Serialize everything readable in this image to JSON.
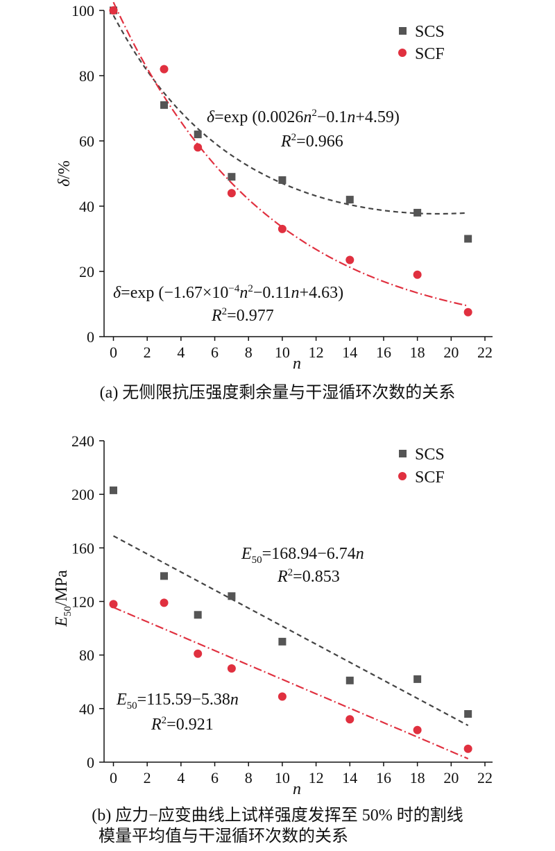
{
  "chart_data": [
    {
      "type": "scatter",
      "xlabel": "n",
      "ylabel": "δ/%",
      "xlim": [
        -1,
        22
      ],
      "ylim": [
        0,
        100
      ],
      "xticks": [
        "0",
        "2",
        "4",
        "6",
        "8",
        "10",
        "12",
        "14",
        "16",
        "18",
        "20",
        "22"
      ],
      "yticks": [
        "0",
        "20",
        "40",
        "60",
        "80",
        "100"
      ],
      "legend_position": "top-right",
      "legend": [
        "SCS",
        "SCF"
      ],
      "caption": "(a) 无侧限抗压强度剩余量与干湿循环次数的关系",
      "series": [
        {
          "name": "SCS",
          "marker": "square",
          "color": "#555555",
          "x": [
            0,
            3,
            5,
            7,
            10,
            14,
            18,
            21
          ],
          "y": [
            100,
            71,
            62,
            49,
            48,
            42,
            38,
            30
          ]
        },
        {
          "name": "SCF",
          "marker": "circle",
          "color": "#e0303f",
          "x": [
            0,
            3,
            5,
            7,
            10,
            14,
            18,
            21
          ],
          "y": [
            100,
            82,
            58,
            44,
            33,
            23.5,
            19,
            7.5
          ]
        }
      ],
      "fits": [
        {
          "series": "SCS",
          "line": "dashed",
          "color": "#444444",
          "model": "exp",
          "coef": [
            0.0026,
            -0.1,
            4.59
          ],
          "x_range": [
            0,
            21
          ],
          "eq_prefix": "δ=exp (0.0026",
          "eq_mid": "−0.1",
          "eq_tail": "+4.59)",
          "r2_text": "=0.966"
        },
        {
          "series": "SCF",
          "line": "dashdot",
          "color": "#e0303f",
          "model": "exp",
          "coef": [
            -0.000167,
            -0.11,
            4.63
          ],
          "x_range": [
            0,
            21
          ],
          "eq_prefix": "δ=exp (−1.67×10",
          "eq_exp": "−4",
          "eq_mid": "−0.11",
          "eq_tail": "+4.63)",
          "r2_text": "=0.977"
        }
      ]
    },
    {
      "type": "scatter",
      "xlabel": "n",
      "ylabel": "E50/MPa",
      "xlim": [
        -1,
        22
      ],
      "ylim": [
        0,
        240
      ],
      "xticks": [
        "0",
        "2",
        "4",
        "6",
        "8",
        "10",
        "12",
        "14",
        "16",
        "18",
        "20",
        "22"
      ],
      "yticks": [
        "0",
        "40",
        "80",
        "120",
        "160",
        "200",
        "240"
      ],
      "legend_position": "top-right",
      "legend": [
        "SCS",
        "SCF"
      ],
      "caption_line1": "(b) 应力−应变曲线上试样强度发挥至 50% 时的割线",
      "caption_line2": "模量平均值与干湿循环次数的关系",
      "series": [
        {
          "name": "SCS",
          "marker": "square",
          "color": "#555555",
          "x": [
            0,
            3,
            5,
            7,
            10,
            14,
            18,
            21
          ],
          "y": [
            203,
            139,
            110,
            124,
            90,
            61,
            62,
            36
          ]
        },
        {
          "name": "SCF",
          "marker": "circle",
          "color": "#e0303f",
          "x": [
            0,
            3,
            5,
            7,
            10,
            14,
            18,
            21
          ],
          "y": [
            118,
            119,
            81,
            70,
            49,
            32,
            24,
            10
          ]
        }
      ],
      "fits": [
        {
          "series": "SCS",
          "line": "dashed",
          "color": "#444444",
          "model": "linear",
          "coef": [
            168.94,
            -6.74
          ],
          "x_range": [
            0,
            21
          ],
          "eq_rest": "=168.94−6.74",
          "r2_text": "=0.853"
        },
        {
          "series": "SCF",
          "line": "dashdot",
          "color": "#e0303f",
          "model": "linear",
          "coef": [
            115.59,
            -5.38
          ],
          "x_range": [
            0,
            21
          ],
          "eq_rest": "=115.59−5.38",
          "r2_text": "=0.921"
        }
      ]
    }
  ]
}
